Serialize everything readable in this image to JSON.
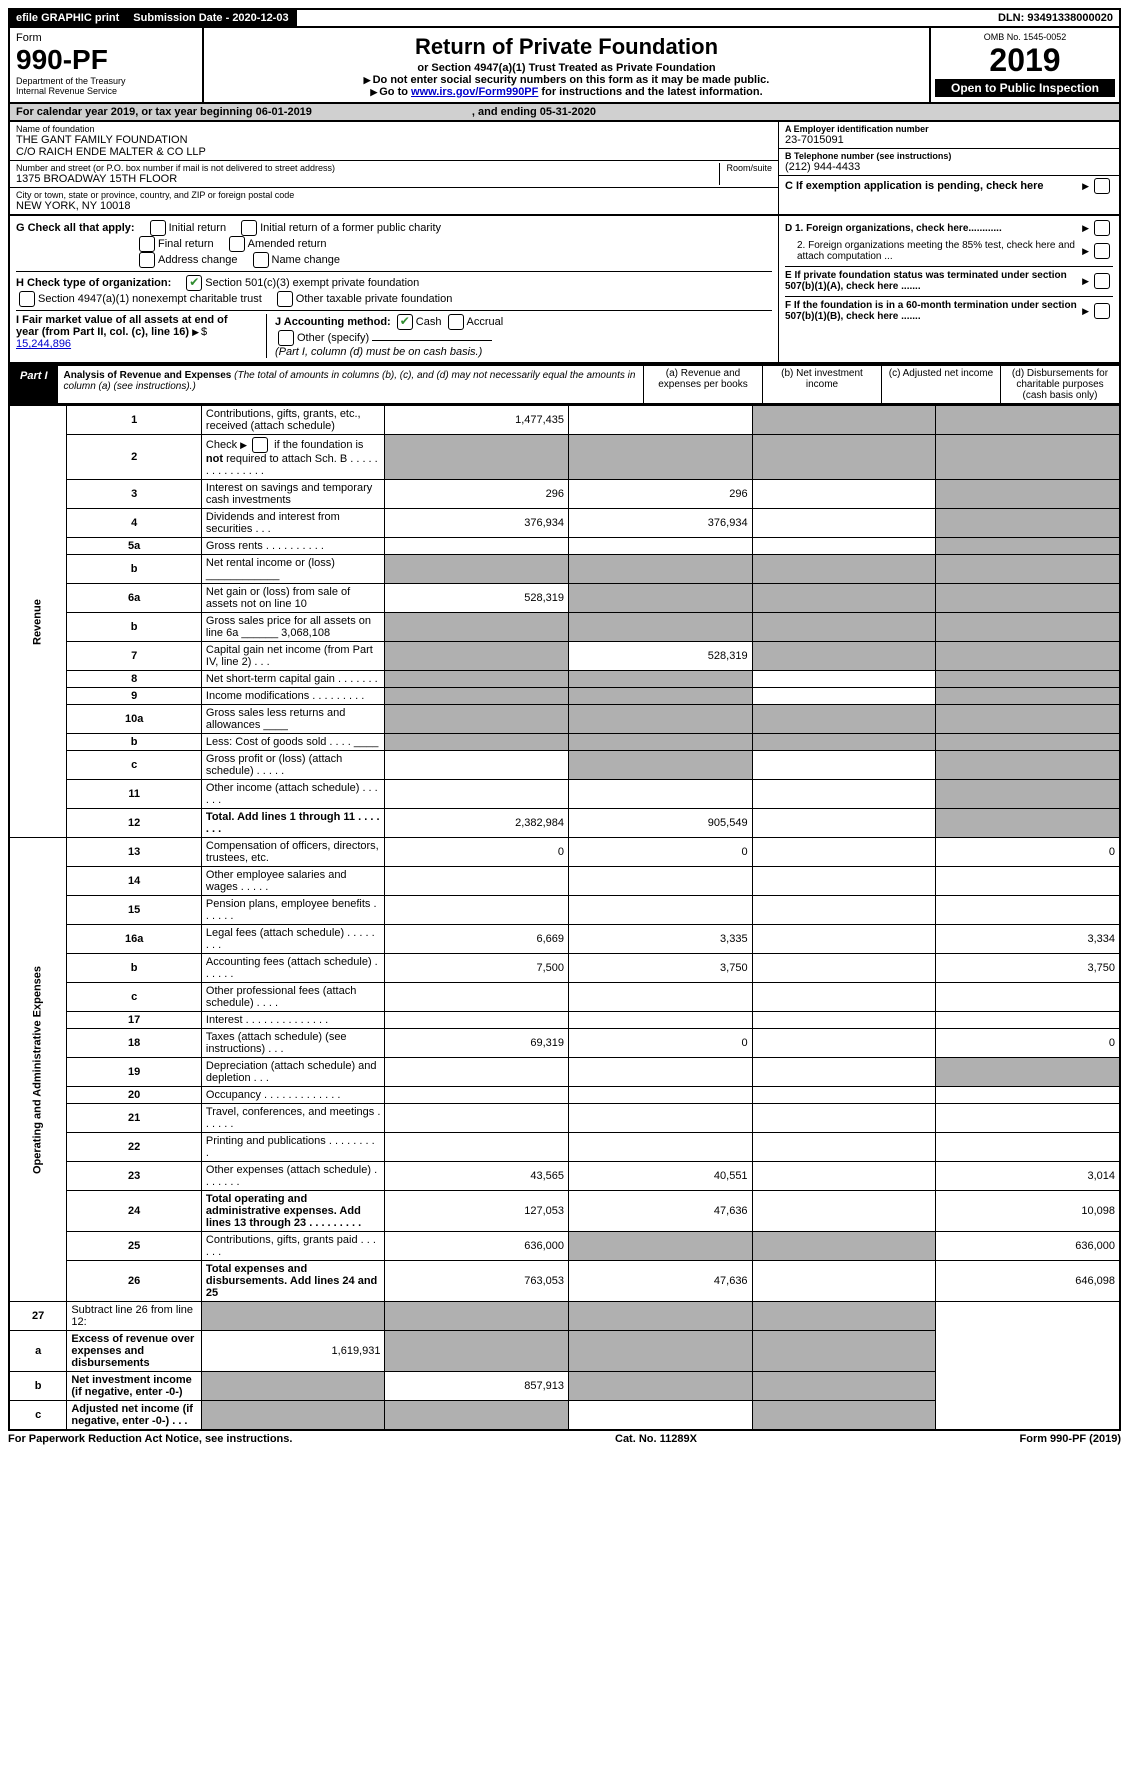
{
  "topbar": {
    "efile": "efile GRAPHIC print",
    "submission_label": "Submission Date - 2020-12-03",
    "dln": "DLN: 93491338000020"
  },
  "header": {
    "form_word": "Form",
    "form_number": "990-PF",
    "dept": "Department of the Treasury",
    "irs": "Internal Revenue Service",
    "title": "Return of Private Foundation",
    "subtitle": "or Section 4947(a)(1) Trust Treated as Private Foundation",
    "note1": "Do not enter social security numbers on this form as it may be made public.",
    "note2_pre": "Go to ",
    "note2_link": "www.irs.gov/Form990PF",
    "note2_post": " for instructions and the latest information.",
    "omb": "OMB No. 1545-0052",
    "year": "2019",
    "open": "Open to Public Inspection"
  },
  "calendar": {
    "text": "For calendar year 2019, or tax year beginning 06-01-2019",
    "ending": ", and ending 05-31-2020"
  },
  "entity": {
    "name_label": "Name of foundation",
    "name1": "THE GANT FAMILY FOUNDATION",
    "name2": "C/O RAICH ENDE MALTER & CO LLP",
    "addr_label": "Number and street (or P.O. box number if mail is not delivered to street address)",
    "addr": "1375 BROADWAY 15TH FLOOR",
    "room_label": "Room/suite",
    "city_label": "City or town, state or province, country, and ZIP or foreign postal code",
    "city": "NEW YORK, NY  10018",
    "a_label": "A Employer identification number",
    "ein": "23-7015091",
    "b_label": "B Telephone number (see instructions)",
    "phone": "(212) 944-4433",
    "c_label": "C If exemption application is pending, check here"
  },
  "checks": {
    "g_label": "G Check all that apply:",
    "initial": "Initial return",
    "initial_former": "Initial return of a former public charity",
    "final": "Final return",
    "amended": "Amended return",
    "addr_change": "Address change",
    "name_change": "Name change",
    "h_label": "H Check type of organization:",
    "h_501c3": "Section 501(c)(3) exempt private foundation",
    "h_4947": "Section 4947(a)(1) nonexempt charitable trust",
    "h_other": "Other taxable private foundation",
    "i_label": "I Fair market value of all assets at end of year (from Part II, col. (c), line 16)",
    "i_value": "15,244,896",
    "j_label": "J Accounting method:",
    "j_cash": "Cash",
    "j_accrual": "Accrual",
    "j_other": "Other (specify)",
    "j_note": "(Part I, column (d) must be on cash basis.)",
    "d1": "D 1. Foreign organizations, check here............",
    "d2": "2. Foreign organizations meeting the 85% test, check here and attach computation ...",
    "e": "E  If private foundation status was terminated under section 507(b)(1)(A), check here .......",
    "f": "F  If the foundation is in a 60-month termination under section 507(b)(1)(B), check here ......."
  },
  "part1": {
    "label": "Part I",
    "title": "Analysis of Revenue and Expenses",
    "title_note": "(The total of amounts in columns (b), (c), and (d) may not necessarily equal the amounts in column (a) (see instructions).)",
    "col_a": "(a)   Revenue and expenses per books",
    "col_b": "(b)   Net investment income",
    "col_c": "(c)   Adjusted net income",
    "col_d": "(d)   Disbursements for charitable purposes (cash basis only)"
  },
  "side": {
    "revenue": "Revenue",
    "expenses": "Operating and Administrative Expenses"
  },
  "rows": [
    {
      "n": "1",
      "d": "Contributions, gifts, grants, etc., received (attach schedule)",
      "a": "1,477,435",
      "b": "",
      "c_shade": true,
      "d_shade": true
    },
    {
      "n": "2",
      "d": "Check ▶ ☐ if the foundation is not required to attach Sch. B",
      "a": "",
      "b": "",
      "c_shade": true,
      "d_shade": true,
      "html": true,
      "a_shade": true,
      "b_shade": true
    },
    {
      "n": "3",
      "d": "Interest on savings and temporary cash investments",
      "a": "296",
      "b": "296",
      "c": "",
      "d_shade": true
    },
    {
      "n": "4",
      "d": "Dividends and interest from securities   .   .   .",
      "a": "376,934",
      "b": "376,934",
      "c": "",
      "d_shade": true
    },
    {
      "n": "5a",
      "d": "Gross rents   .   .   .   .   .   .   .   .   .   .",
      "a": "",
      "b": "",
      "c": "",
      "d_shade": true
    },
    {
      "n": "b",
      "d": "Net rental income or (loss)  ____________",
      "a_shade": true,
      "b_shade": true,
      "c_shade": true,
      "d_shade": true
    },
    {
      "n": "6a",
      "d": "Net gain or (loss) from sale of assets not on line 10",
      "a": "528,319",
      "b_shade": true,
      "c_shade": true,
      "d_shade": true
    },
    {
      "n": "b",
      "d": "Gross sales price for all assets on line 6a ______ 3,068,108",
      "a_shade": true,
      "b_shade": true,
      "c_shade": true,
      "d_shade": true
    },
    {
      "n": "7",
      "d": "Capital gain net income (from Part IV, line 2)   .   .   .",
      "a_shade": true,
      "b": "528,319",
      "c_shade": true,
      "d_shade": true
    },
    {
      "n": "8",
      "d": "Net short-term capital gain   .   .   .   .   .   .   .",
      "a_shade": true,
      "b_shade": true,
      "c": "",
      "d_shade": true
    },
    {
      "n": "9",
      "d": "Income modifications  .   .   .   .   .   .   .   .   .",
      "a_shade": true,
      "b_shade": true,
      "c": "",
      "d_shade": true
    },
    {
      "n": "10a",
      "d": "Gross sales less returns and allowances  ____",
      "a_shade": true,
      "b_shade": true,
      "c_shade": true,
      "d_shade": true
    },
    {
      "n": "b",
      "d": "Less: Cost of goods sold   .   .   .   .  ____",
      "a_shade": true,
      "b_shade": true,
      "c_shade": true,
      "d_shade": true
    },
    {
      "n": "c",
      "d": "Gross profit or (loss) (attach schedule)   .   .   .   .   .",
      "a": "",
      "b_shade": true,
      "c": "",
      "d_shade": true
    },
    {
      "n": "11",
      "d": "Other income (attach schedule)   .   .   .   .   .   .",
      "a": "",
      "b": "",
      "c": "",
      "d_shade": true
    },
    {
      "n": "12",
      "d": "Total. Add lines 1 through 11   .   .   .   .   .   .   .",
      "a": "2,382,984",
      "b": "905,549",
      "c": "",
      "d_shade": true,
      "bold": true
    }
  ],
  "exp_rows": [
    {
      "n": "13",
      "d": "Compensation of officers, directors, trustees, etc.",
      "a": "0",
      "b": "0",
      "c": "",
      "dd": "0"
    },
    {
      "n": "14",
      "d": "Other employee salaries and wages   .   .   .   .   .",
      "a": "",
      "b": "",
      "c": "",
      "dd": ""
    },
    {
      "n": "15",
      "d": "Pension plans, employee benefits   .   .   .   .   .   .",
      "a": "",
      "b": "",
      "c": "",
      "dd": ""
    },
    {
      "n": "16a",
      "d": "Legal fees (attach schedule)  .   .   .   .   .   .   .   .",
      "a": "6,669",
      "b": "3,335",
      "c": "",
      "dd": "3,334"
    },
    {
      "n": "b",
      "d": "Accounting fees (attach schedule)   .   .   .   .   .   .",
      "a": "7,500",
      "b": "3,750",
      "c": "",
      "dd": "3,750"
    },
    {
      "n": "c",
      "d": "Other professional fees (attach schedule)   .   .   .   .",
      "a": "",
      "b": "",
      "c": "",
      "dd": ""
    },
    {
      "n": "17",
      "d": "Interest   .   .   .   .   .   .   .   .   .   .   .   .   .   .",
      "a": "",
      "b": "",
      "c": "",
      "dd": ""
    },
    {
      "n": "18",
      "d": "Taxes (attach schedule) (see instructions)   .   .   .",
      "a": "69,319",
      "b": "0",
      "c": "",
      "dd": "0"
    },
    {
      "n": "19",
      "d": "Depreciation (attach schedule) and depletion   .   .   .",
      "a": "",
      "b": "",
      "c": "",
      "d_shade": true
    },
    {
      "n": "20",
      "d": "Occupancy  .   .   .   .   .   .   .   .   .   .   .   .   .",
      "a": "",
      "b": "",
      "c": "",
      "dd": ""
    },
    {
      "n": "21",
      "d": "Travel, conferences, and meetings   .   .   .   .   .   .",
      "a": "",
      "b": "",
      "c": "",
      "dd": ""
    },
    {
      "n": "22",
      "d": "Printing and publications   .   .   .   .   .   .   .   .   .",
      "a": "",
      "b": "",
      "c": "",
      "dd": ""
    },
    {
      "n": "23",
      "d": "Other expenses (attach schedule)   .   .   .   .   .   .   .",
      "a": "43,565",
      "b": "40,551",
      "c": "",
      "dd": "3,014"
    },
    {
      "n": "24",
      "d": "Total operating and administrative expenses. Add lines 13 through 23   .   .   .   .   .   .   .   .   .",
      "a": "127,053",
      "b": "47,636",
      "c": "",
      "dd": "10,098",
      "bold": true
    },
    {
      "n": "25",
      "d": "Contributions, gifts, grants paid   .   .   .   .   .   .",
      "a": "636,000",
      "b_shade": true,
      "c_shade": true,
      "dd": "636,000"
    },
    {
      "n": "26",
      "d": "Total expenses and disbursements. Add lines 24 and 25",
      "a": "763,053",
      "b": "47,636",
      "c": "",
      "dd": "646,098",
      "bold": true
    }
  ],
  "sub_rows": [
    {
      "n": "27",
      "d": "Subtract line 26 from line 12:",
      "a_shade": true,
      "b_shade": true,
      "c_shade": true,
      "d_shade": true
    },
    {
      "n": "a",
      "d": "Excess of revenue over expenses and disbursements",
      "a": "1,619,931",
      "b_shade": true,
      "c_shade": true,
      "d_shade": true,
      "bold": true
    },
    {
      "n": "b",
      "d": "Net investment income (if negative, enter -0-)",
      "a_shade": true,
      "b": "857,913",
      "c_shade": true,
      "d_shade": true,
      "bold": true
    },
    {
      "n": "c",
      "d": "Adjusted net income (if negative, enter -0-)   .   .   .",
      "a_shade": true,
      "b_shade": true,
      "c": "",
      "d_shade": true,
      "bold": true
    }
  ],
  "footer": {
    "left": "For Paperwork Reduction Act Notice, see instructions.",
    "mid": "Cat. No. 11289X",
    "right": "Form 990-PF (2019)"
  }
}
